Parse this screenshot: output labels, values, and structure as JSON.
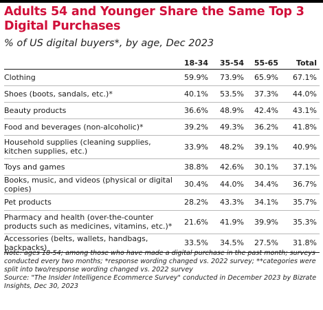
{
  "header": {
    "title": "Adults 54 and Younger Share the Same Top 3 Digital Purchases",
    "subtitle": "% of US digital buyers*, by age, Dec 2023"
  },
  "table": {
    "columns": [
      "",
      "18-34",
      "35-54",
      "55-65",
      "Total"
    ],
    "rows": [
      {
        "label": "Clothing",
        "values": [
          "59.9%",
          "73.9%",
          "65.9%",
          "67.1%"
        ]
      },
      {
        "label": "Shoes (boots, sandals, etc.)*",
        "values": [
          "40.1%",
          "53.5%",
          "37.3%",
          "44.0%"
        ]
      },
      {
        "label": "Beauty products",
        "values": [
          "36.6%",
          "48.9%",
          "42.4%",
          "43.1%"
        ]
      },
      {
        "label": "Food and beverages (non-alcoholic)*",
        "values": [
          "39.2%",
          "49.3%",
          "36.2%",
          "41.8%"
        ]
      },
      {
        "label": "Household supplies (cleaning supplies, kitchen supplies, etc.)",
        "values": [
          "33.9%",
          "48.2%",
          "39.1%",
          "40.9%"
        ]
      },
      {
        "label": "Toys and games",
        "values": [
          "38.8%",
          "42.6%",
          "30.1%",
          "37.1%"
        ]
      },
      {
        "label": "Books, music, and videos (physical or digital copies)",
        "values": [
          "30.4%",
          "44.0%",
          "34.4%",
          "36.7%"
        ]
      },
      {
        "label": "Pet products",
        "values": [
          "28.2%",
          "43.3%",
          "34.1%",
          "35.7%"
        ]
      },
      {
        "label": "Pharmacy and health (over-the-counter products such as medicines, vitamins, etc.)*",
        "values": [
          "21.6%",
          "41.9%",
          "39.9%",
          "35.3%"
        ]
      },
      {
        "label": "Accessories (belts, wallets, handbags, backpacks)",
        "values": [
          "33.5%",
          "34.5%",
          "27.5%",
          "31.8%"
        ]
      }
    ]
  },
  "chart_data": {
    "type": "table",
    "title": "Adults 54 and Younger Share the Same Top 3 Digital Purchases",
    "subtitle": "% of US digital buyers*, by age, Dec 2023",
    "categories": [
      "Clothing",
      "Shoes (boots, sandals, etc.)*",
      "Beauty products",
      "Food and beverages (non-alcoholic)*",
      "Household supplies (cleaning supplies, kitchen supplies, etc.)",
      "Toys and games",
      "Books, music, and videos (physical or digital copies)",
      "Pet products",
      "Pharmacy and health (over-the-counter products such as medicines, vitamins, etc.)*",
      "Accessories (belts, wallets, handbags, backpacks)"
    ],
    "series": [
      {
        "name": "18-34",
        "values": [
          59.9,
          40.1,
          36.6,
          39.2,
          33.9,
          38.8,
          30.4,
          28.2,
          21.6,
          33.5
        ]
      },
      {
        "name": "35-54",
        "values": [
          73.9,
          53.5,
          48.9,
          49.3,
          48.2,
          42.6,
          44.0,
          43.3,
          41.9,
          34.5
        ]
      },
      {
        "name": "55-65",
        "values": [
          65.9,
          37.3,
          42.4,
          36.2,
          39.1,
          30.1,
          34.4,
          34.1,
          39.9,
          27.5
        ]
      },
      {
        "name": "Total",
        "values": [
          67.1,
          44.0,
          43.1,
          41.8,
          40.9,
          37.1,
          36.7,
          35.7,
          35.3,
          31.8
        ]
      }
    ]
  },
  "note": "Note: ages 18-54; among those who have made a digital purchase in the past month; surveys conducted every two months; *response wording changed vs. 2022 survey; **categories were split into two/response wording changed vs. 2022 survey\nSource: \"The Insider Intelligence Ecommerce Survey\" conducted in December 2023 by Bizrate Insights, Dec 30, 2023",
  "colors": {
    "title": "#d0103a",
    "rule": "#1a1a1a",
    "divider": "#b8b8b8"
  }
}
